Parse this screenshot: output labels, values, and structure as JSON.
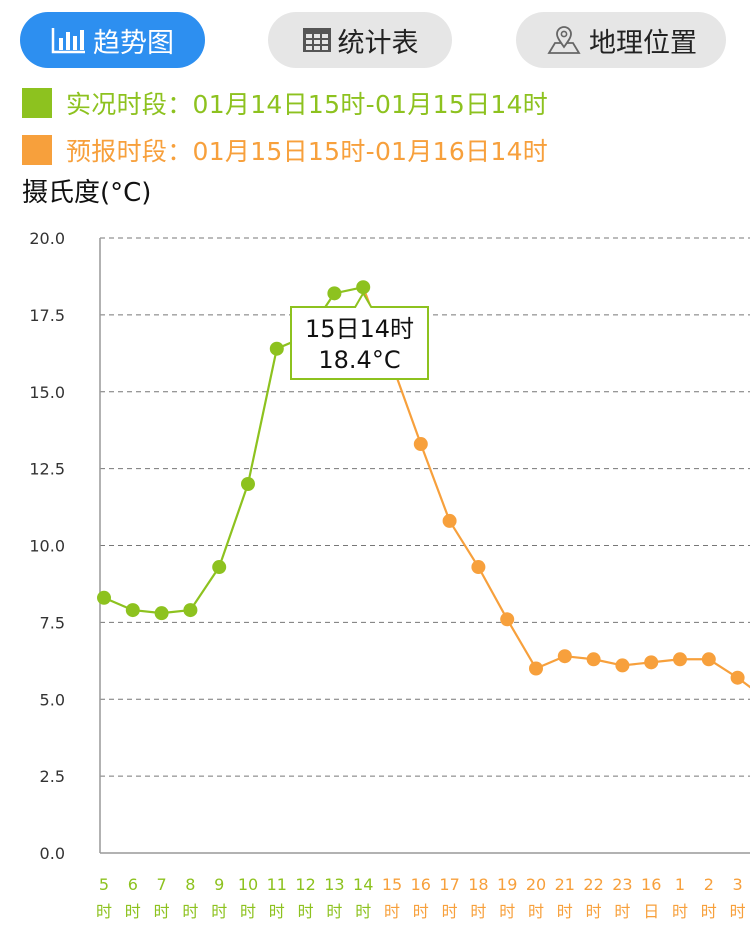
{
  "tabs": [
    {
      "label": "趋势图",
      "icon": "bar-chart-icon",
      "active": true
    },
    {
      "label": "统计表",
      "icon": "table-grid-icon",
      "active": false
    },
    {
      "label": "地理位置",
      "icon": "map-pin-icon",
      "active": false
    }
  ],
  "legend": {
    "actual": "实况时段：01月14日15时-01月15日14时",
    "forecast": "预报时段：01月15日15时-01月16日14时"
  },
  "colors": {
    "actual": "#8dc21f",
    "forecast": "#f7a03c",
    "tab_active": "#2d8ff0"
  },
  "tooltip": {
    "line1": "15日14时",
    "line2": "18.4°C"
  },
  "chart_data": {
    "type": "line",
    "ylabel": "摄氏度(°C)",
    "ylim": [
      0,
      20
    ],
    "yticks": [
      "0.0",
      "2.5",
      "5.0",
      "7.5",
      "10.0",
      "12.5",
      "15.0",
      "17.5",
      "20.0"
    ],
    "grid": true,
    "x_labels": [
      [
        "5",
        "时"
      ],
      [
        "6",
        "时"
      ],
      [
        "7",
        "时"
      ],
      [
        "8",
        "时"
      ],
      [
        "9",
        "时"
      ],
      [
        "10",
        "时"
      ],
      [
        "11",
        "时"
      ],
      [
        "12",
        "时"
      ],
      [
        "13",
        "时"
      ],
      [
        "14",
        "时"
      ],
      [
        "15",
        "时"
      ],
      [
        "16",
        "时"
      ],
      [
        "17",
        "时"
      ],
      [
        "18",
        "时"
      ],
      [
        "19",
        "时"
      ],
      [
        "20",
        "时"
      ],
      [
        "21",
        "时"
      ],
      [
        "22",
        "时"
      ],
      [
        "23",
        "时"
      ],
      [
        "16",
        "日"
      ],
      [
        "1",
        "时"
      ],
      [
        "2",
        "时"
      ],
      [
        "3",
        "时"
      ]
    ],
    "series": [
      {
        "values": [
          8.3,
          7.9,
          7.8,
          7.9,
          9.3,
          12.0,
          16.4,
          16.8,
          18.2,
          18.4
        ]
      },
      {
        "values": [
          18.4,
          15.9,
          13.3,
          10.8,
          9.3,
          7.6,
          6.0,
          6.4,
          6.3,
          6.1,
          6.2,
          6.3,
          6.3,
          5.7,
          5.0
        ]
      }
    ]
  }
}
